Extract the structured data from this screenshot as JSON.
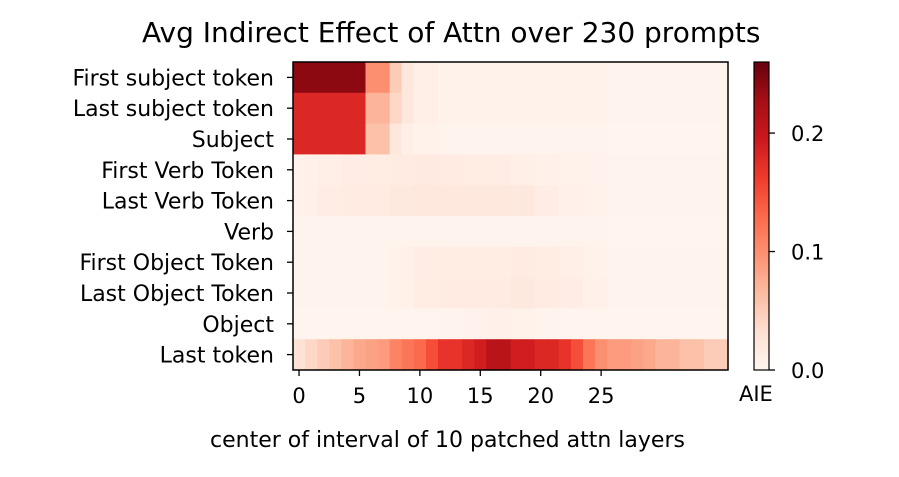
{
  "chart_data": {
    "type": "heatmap",
    "title": "Avg Indirect Effect of Attn over 230 prompts",
    "xlabel": "center of interval of 10 patched attn layers",
    "ylabel": "",
    "rows": [
      "First subject token",
      "Last subject token",
      "Subject",
      "First Verb Token",
      "Last Verb Token",
      "Verb",
      "First Object Token",
      "Last Object Token",
      "Object",
      "Last token"
    ],
    "x": [
      0,
      1,
      2,
      3,
      4,
      5,
      6,
      7,
      8,
      9,
      10,
      11,
      12,
      13,
      14,
      15,
      16,
      17,
      18,
      19,
      20,
      21,
      22,
      23,
      24,
      25,
      26,
      27,
      28,
      29,
      30,
      31,
      32,
      33,
      34,
      35
    ],
    "x_ticks": [
      0,
      5,
      10,
      15,
      20,
      25
    ],
    "values": [
      [
        0.24,
        0.24,
        0.24,
        0.24,
        0.24,
        0.24,
        0.1,
        0.1,
        0.05,
        0.02,
        0.01,
        0.01,
        0.005,
        0.005,
        0.005,
        0.005,
        0.005,
        0.005,
        0.005,
        0.005,
        0.005,
        0.005,
        0.005,
        0.005,
        0.005,
        0.005,
        0.003,
        0.003,
        0.003,
        0.003,
        0.003,
        0.003,
        0.003,
        0.003,
        0.003,
        0.003
      ],
      [
        0.18,
        0.18,
        0.18,
        0.18,
        0.18,
        0.18,
        0.07,
        0.07,
        0.04,
        0.02,
        0.01,
        0.01,
        0.005,
        0.005,
        0.005,
        0.005,
        0.005,
        0.005,
        0.005,
        0.005,
        0.005,
        0.005,
        0.005,
        0.005,
        0.005,
        0.005,
        0.003,
        0.003,
        0.003,
        0.003,
        0.003,
        0.003,
        0.003,
        0.003,
        0.003,
        0.003
      ],
      [
        0.18,
        0.18,
        0.18,
        0.18,
        0.18,
        0.18,
        0.06,
        0.06,
        0.02,
        0.01,
        0.005,
        0.005,
        0.003,
        0.003,
        0.003,
        0.003,
        0.003,
        0.003,
        0.003,
        0.003,
        0.003,
        0.003,
        0.003,
        0.003,
        0.003,
        0.003,
        0.002,
        0.002,
        0.002,
        0.002,
        0.002,
        0.002,
        0.002,
        0.002,
        0.002,
        0.002
      ],
      [
        0.005,
        0.008,
        0.01,
        0.01,
        0.012,
        0.012,
        0.013,
        0.013,
        0.015,
        0.016,
        0.017,
        0.017,
        0.015,
        0.015,
        0.013,
        0.013,
        0.012,
        0.012,
        0.01,
        0.01,
        0.008,
        0.008,
        0.005,
        0.005,
        0.004,
        0.004,
        0.003,
        0.003,
        0.003,
        0.003,
        0.003,
        0.003,
        0.003,
        0.003,
        0.003,
        0.003
      ],
      [
        0.005,
        0.008,
        0.012,
        0.012,
        0.015,
        0.015,
        0.016,
        0.016,
        0.018,
        0.018,
        0.02,
        0.02,
        0.02,
        0.02,
        0.02,
        0.02,
        0.02,
        0.02,
        0.018,
        0.02,
        0.012,
        0.012,
        0.008,
        0.008,
        0.005,
        0.005,
        0.003,
        0.003,
        0.003,
        0.003,
        0.003,
        0.003,
        0.003,
        0.003,
        0.003,
        0.003
      ],
      [
        0.003,
        0.003,
        0.003,
        0.003,
        0.003,
        0.003,
        0.003,
        0.003,
        0.003,
        0.003,
        0.003,
        0.003,
        0.003,
        0.003,
        0.003,
        0.003,
        0.003,
        0.003,
        0.003,
        0.003,
        0.003,
        0.003,
        0.003,
        0.003,
        0.003,
        0.003,
        0.002,
        0.002,
        0.002,
        0.002,
        0.002,
        0.002,
        0.002,
        0.002,
        0.002,
        0.002
      ],
      [
        0.003,
        0.003,
        0.003,
        0.003,
        0.003,
        0.003,
        0.003,
        0.003,
        0.005,
        0.008,
        0.012,
        0.012,
        0.014,
        0.014,
        0.014,
        0.014,
        0.014,
        0.014,
        0.016,
        0.016,
        0.014,
        0.014,
        0.01,
        0.01,
        0.005,
        0.005,
        0.003,
        0.003,
        0.003,
        0.003,
        0.003,
        0.003,
        0.003,
        0.003,
        0.003,
        0.003
      ],
      [
        0.003,
        0.003,
        0.003,
        0.003,
        0.003,
        0.003,
        0.003,
        0.003,
        0.005,
        0.008,
        0.014,
        0.014,
        0.016,
        0.016,
        0.016,
        0.016,
        0.016,
        0.016,
        0.018,
        0.018,
        0.016,
        0.016,
        0.012,
        0.012,
        0.006,
        0.006,
        0.003,
        0.003,
        0.003,
        0.003,
        0.003,
        0.003,
        0.003,
        0.003,
        0.003,
        0.003
      ],
      [
        0.002,
        0.002,
        0.002,
        0.002,
        0.002,
        0.002,
        0.002,
        0.002,
        0.002,
        0.002,
        0.002,
        0.002,
        0.003,
        0.003,
        0.004,
        0.004,
        0.006,
        0.008,
        0.005,
        0.005,
        0.003,
        0.003,
        0.002,
        0.002,
        0.002,
        0.002,
        0.002,
        0.002,
        0.002,
        0.002,
        0.002,
        0.002,
        0.002,
        0.002,
        0.002,
        0.002
      ],
      [
        0.03,
        0.04,
        0.05,
        0.06,
        0.07,
        0.08,
        0.085,
        0.09,
        0.11,
        0.12,
        0.13,
        0.15,
        0.17,
        0.17,
        0.18,
        0.19,
        0.21,
        0.21,
        0.19,
        0.19,
        0.18,
        0.18,
        0.17,
        0.15,
        0.12,
        0.1,
        0.09,
        0.09,
        0.085,
        0.08,
        0.07,
        0.07,
        0.06,
        0.06,
        0.05,
        0.05
      ]
    ],
    "colorbar": {
      "label": "AIE",
      "ticks": [
        0.0,
        0.1,
        0.2
      ],
      "tick_labels": [
        "0.0",
        "0.1",
        "0.2"
      ],
      "range": [
        0.0,
        0.26
      ],
      "colormap": "Reds",
      "colormap_stops": [
        "#fff5f0",
        "#fee0d2",
        "#fcbba1",
        "#fc9272",
        "#fb6a4a",
        "#ef3b2c",
        "#cb181d",
        "#a50f15",
        "#67000d"
      ]
    }
  }
}
